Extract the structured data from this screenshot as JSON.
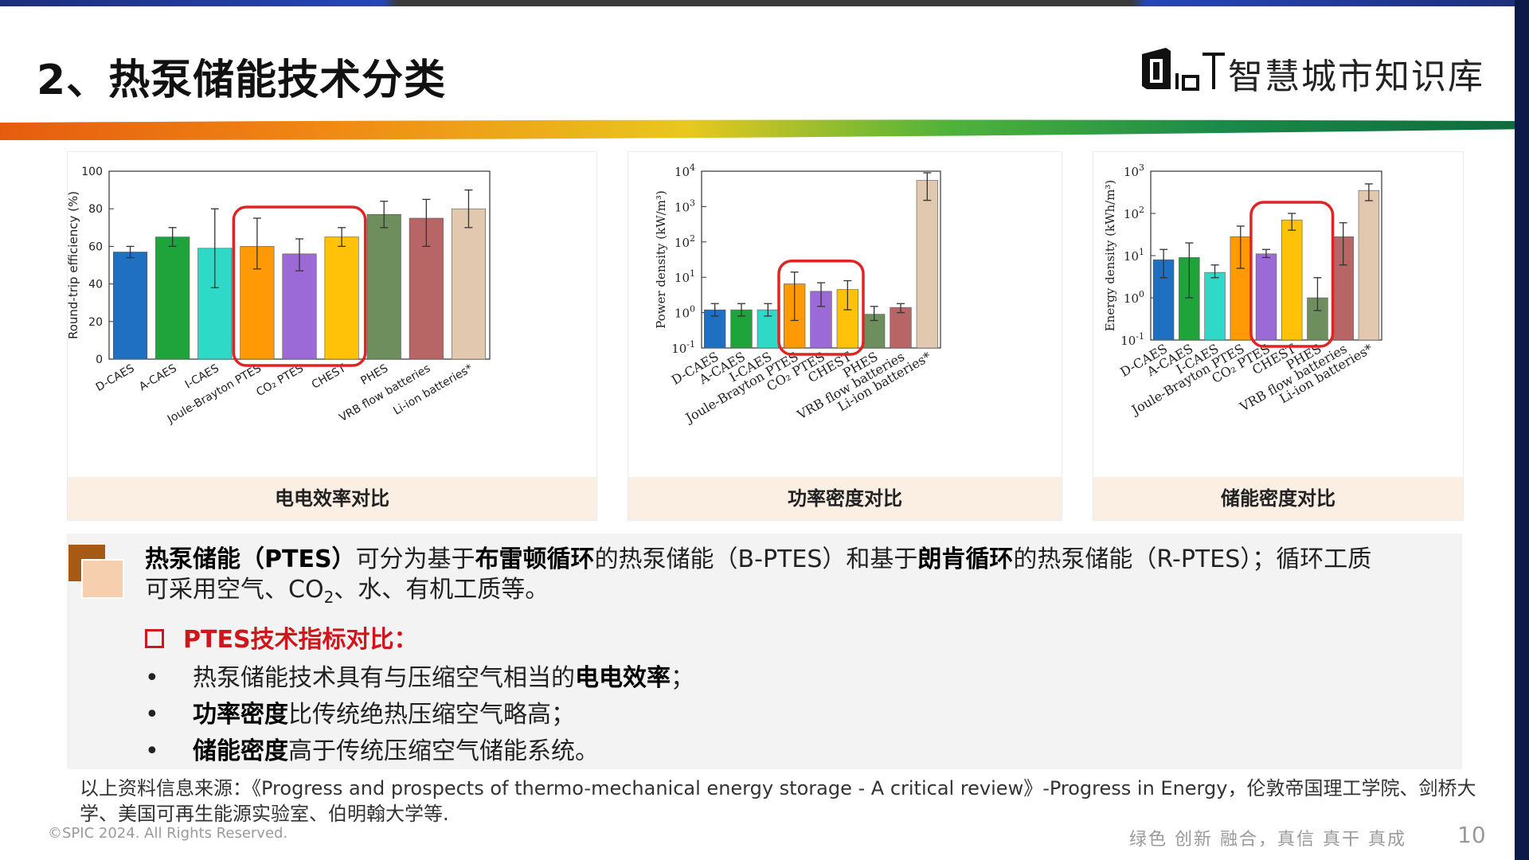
{
  "title": "2、热泵储能技术分类",
  "logo": {
    "text": "智慧城市知识库"
  },
  "colors": {
    "accent_red": "#d0151b",
    "highlight_box": "#e02424",
    "caption_bg": "#fbeee3"
  },
  "charts": [
    {
      "caption": "电电效率对比"
    },
    {
      "caption": "功率密度对比"
    },
    {
      "caption": "储能密度对比"
    }
  ],
  "chart_data": [
    {
      "type": "bar",
      "ylabel": "Round-trip efficiency (%)",
      "ylim": [
        0,
        100
      ],
      "yticks": [
        "0",
        "20",
        "40",
        "60",
        "80",
        "100"
      ],
      "categories": [
        "D-CAES",
        "A-CAES",
        "I-CAES",
        "Joule-Brayton PTES",
        "CO₂ PTES",
        "CHEST",
        "PHES",
        "VRB flow batteries",
        "Li-ion batteries"
      ],
      "category_suffix": [
        "",
        "",
        "",
        "",
        "",
        "",
        "",
        "",
        "*"
      ],
      "values": [
        57,
        65,
        59,
        60,
        56,
        65,
        77,
        75,
        80
      ],
      "err_low": [
        54,
        60,
        38,
        48,
        47,
        60,
        70,
        60,
        70
      ],
      "err_high": [
        60,
        70,
        80,
        75,
        64,
        70,
        84,
        85,
        90
      ],
      "bar_colors": [
        "#1f6fc2",
        "#1ea43a",
        "#2fd9c8",
        "#ff9a06",
        "#9b6ad6",
        "#ffc209",
        "#6e8e5d",
        "#b86566",
        "#e2c8af"
      ],
      "highlight": [
        3,
        5
      ]
    },
    {
      "type": "bar",
      "scale": "log",
      "ylabel": "Power density (kW/m³)",
      "ylim_exp": [
        -1,
        4
      ],
      "ytick_exps": [
        "-1",
        "0",
        "1",
        "2",
        "3",
        "4"
      ],
      "categories": [
        "D-CAES",
        "A-CAES",
        "I-CAES",
        "Joule-Brayton PTES",
        "CO₂ PTES",
        "CHEST",
        "PHES",
        "VRB flow batteries",
        "Li-ion batteries"
      ],
      "category_suffix": [
        "",
        "",
        "",
        "",
        "",
        "",
        "",
        "",
        "*"
      ],
      "values": [
        1.2,
        1.2,
        1.2,
        6.5,
        4,
        4.5,
        0.9,
        1.4,
        5500
      ],
      "err_low": [
        0.8,
        0.8,
        0.8,
        0.6,
        1.5,
        1.2,
        0.6,
        1.0,
        1500
      ],
      "err_high": [
        1.8,
        1.8,
        1.8,
        14,
        7,
        8,
        1.5,
        1.8,
        9000
      ],
      "bar_colors": [
        "#1f6fc2",
        "#1ea43a",
        "#2fd9c8",
        "#ff9a06",
        "#9b6ad6",
        "#ffc209",
        "#6e8e5d",
        "#b86566",
        "#e2c8af"
      ],
      "highlight": [
        3,
        5
      ]
    },
    {
      "type": "bar",
      "scale": "log",
      "ylabel": "Energy density (kWh/m³)",
      "ylim_exp": [
        -1,
        3
      ],
      "ytick_exps": [
        "-1",
        "0",
        "1",
        "2",
        "3"
      ],
      "categories": [
        "D-CAES",
        "A-CAES",
        "I-CAES",
        "Joule-Brayton PTES",
        "CO₂ PTES",
        "CHEST",
        "PHES",
        "VRB flow batteries",
        "Li-ion batteries"
      ],
      "category_suffix": [
        "",
        "",
        "",
        "",
        "",
        "",
        "",
        "",
        "*"
      ],
      "values": [
        8,
        9,
        4,
        28,
        11,
        70,
        1,
        28,
        350
      ],
      "err_low": [
        3,
        1,
        3,
        5,
        9,
        40,
        0.5,
        6,
        200
      ],
      "err_high": [
        14,
        20,
        6,
        50,
        14,
        100,
        3,
        60,
        500
      ],
      "bar_colors": [
        "#1f6fc2",
        "#1ea43a",
        "#2fd9c8",
        "#ff9a06",
        "#9b6ad6",
        "#ffc209",
        "#6e8e5d",
        "#b86566",
        "#e2c8af"
      ],
      "highlight": [
        4,
        6
      ]
    }
  ],
  "paragraph": {
    "b1": "热泵储能（PTES）",
    "t1": "可分为基于",
    "b2": "布雷顿循环",
    "t2": "的热泵储能（B-PTES）和基于",
    "b3": "朗肯循环",
    "t3": "的热泵储能（R-PTES）；循环工质",
    "t4": "可采用空气、CO",
    "sub": "2",
    "t5": "、水、有机工质等。"
  },
  "sub_heading": "PTES技术指标对比：",
  "bullets": [
    {
      "dot": "•",
      "pre": "热泵储能技术具有与压缩空气相当的",
      "bold": "电电效率",
      "post": "；"
    },
    {
      "dot": "•",
      "pre": "",
      "bold": "功率密度",
      "post": "比传统绝热压缩空气略高；"
    },
    {
      "dot": "•",
      "pre": "",
      "bold": "储能密度",
      "post": "高于传统压缩空气储能系统。"
    }
  ],
  "source": "以上资料信息来源：《Progress and prospects of thermo-mechanical energy storage - A critical review》-Progress in Energy，伦敦帝国理工学院、剑桥大学、美国可再生能源实验室、伯明翰大学等.",
  "footer": {
    "copyright": "©SPIC 2024. All Rights Reserved.",
    "slogan": "绿色 创新 融合，真信 真干 真成",
    "page": "10"
  }
}
